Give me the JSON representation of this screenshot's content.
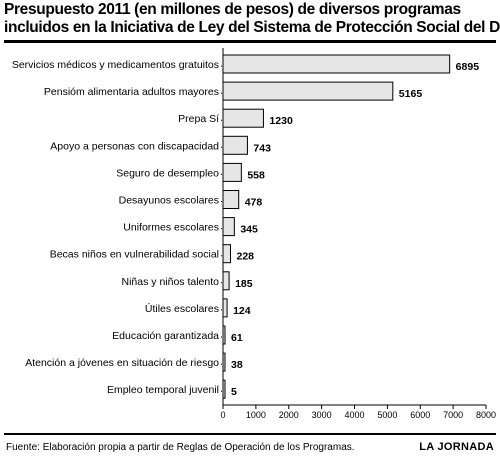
{
  "chart_data": {
    "type": "bar",
    "orientation": "horizontal",
    "title_lines": [
      "Presupuesto 2011 (en millones de pesos) de diversos programas",
      "incluidos en la Iniciativa de Ley del  Sistema de Protección  Social del DF"
    ],
    "categories": [
      "Servicios médicos y medicamentos gratuitos",
      "Pensióm alimentaria adultos mayores",
      "Prepa Sí",
      "Apoyo a personas con discapacidad",
      "Seguro de desempleo",
      "Desayunos escolares",
      "Uniformes escolares",
      "Becas niños en vulnerabilidad social",
      "Niñas y niños talento",
      "Útiles escolares",
      "Educación garantizada",
      "Atención a jóvenes en situación de riesgo",
      "Empleo temporal juvenil"
    ],
    "values": [
      6895,
      5165,
      1230,
      743,
      558,
      478,
      345,
      228,
      185,
      124,
      61,
      38,
      5
    ],
    "value_labels": [
      "6895",
      "5165",
      "1230",
      "743",
      "558",
      "478",
      "345",
      "228",
      "185",
      "124",
      "61",
      "38",
      "5"
    ],
    "xlim": [
      0,
      8000
    ],
    "x_ticks": [
      0,
      1000,
      2000,
      3000,
      4000,
      5000,
      6000,
      7000,
      8000
    ],
    "x_tick_labels": [
      "0",
      "1000",
      "2000",
      "3000",
      "4000",
      "5000",
      "6000",
      "7000",
      "8000"
    ],
    "grid": false,
    "colors": {
      "bar_fill": "#e6e6e6",
      "bar_stroke": "#000000",
      "dot_leader": "#000000"
    }
  },
  "footer": {
    "source": "Fuente: Elaboración propia a partir de Reglas de Operación de los Programas.",
    "brand": "LA JORNADA"
  }
}
